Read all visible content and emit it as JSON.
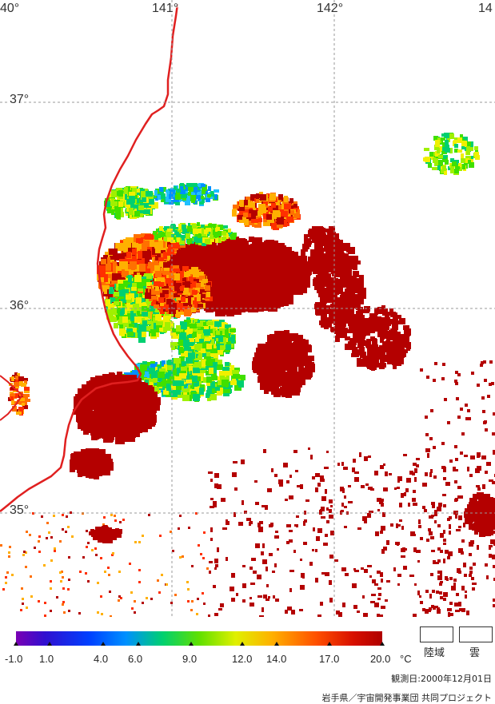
{
  "map": {
    "lon_labels": [
      "40°",
      "141°",
      "142°",
      "14"
    ],
    "lat_labels": [
      "37°",
      "36°",
      "35°"
    ],
    "palette": [
      "#7a00b4",
      "#3010d0",
      "#0040ff",
      "#0090ff",
      "#20c0ff",
      "#00d070",
      "#40e000",
      "#a0f000",
      "#f0f000",
      "#ffb000",
      "#ff7000",
      "#ff3000",
      "#b40000"
    ]
  },
  "legend": {
    "ticks": [
      "-1.0",
      "1.0",
      "4.0",
      "6.0",
      "9.0",
      "12.0",
      "14.0",
      "17.0",
      "20.0"
    ],
    "unit": "°C",
    "land_label": "陸域",
    "cloud_label": "雲",
    "date_text": "観測日:2000年12月01日",
    "credit_text": "岩手県／宇宙開発事業団 共同プロジェクト"
  }
}
